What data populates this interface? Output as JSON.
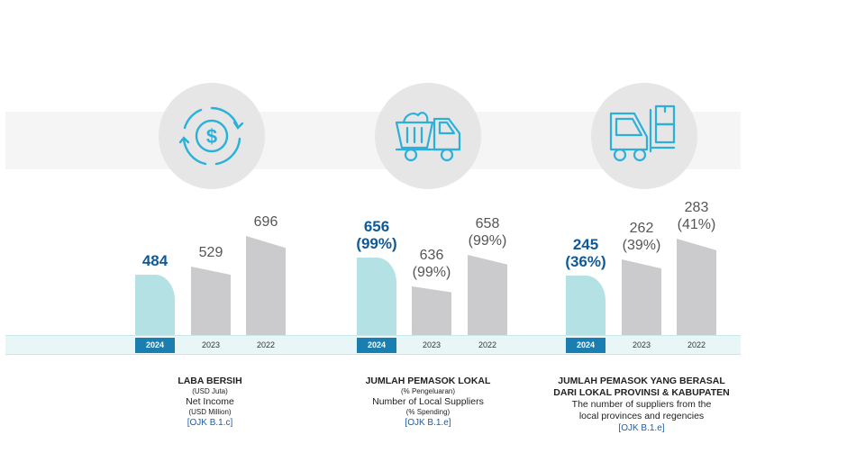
{
  "colors": {
    "current_bar": "#b3e1e4",
    "prior_bar": "#cbcbcd",
    "current_year_bg": "#1a7fb0",
    "current_value": "#0f5a96",
    "icon_stroke": "#2bb0d9"
  },
  "icons": [
    "dollar-cycle-icon",
    "truck-icon",
    "forklift-icon"
  ],
  "chart_data": [
    {
      "type": "bar",
      "categories": [
        "2024",
        "2023",
        "2022"
      ],
      "values": [
        484,
        529,
        696
      ],
      "value_labels": [
        "484",
        "529",
        "696"
      ],
      "caption": {
        "line1": "LABA BERSIH",
        "line2": "(USD Juta)",
        "line3": "Net Income",
        "line4": "(USD Million)",
        "ojk": "[OJK B.1.c]"
      }
    },
    {
      "type": "bar",
      "categories": [
        "2024",
        "2023",
        "2022"
      ],
      "values": [
        656,
        636,
        658
      ],
      "percent_labels": [
        "(99%)",
        "(99%)",
        "(99%)"
      ],
      "value_labels": [
        "656",
        "636",
        "658"
      ],
      "caption": {
        "line1": "JUMLAH PEMASOK LOKAL",
        "line2": "(% Pengeluaran)",
        "line3": "Number of Local Suppliers",
        "line4": "(% Spending)",
        "ojk": "[OJK B.1.e]"
      }
    },
    {
      "type": "bar",
      "categories": [
        "2024",
        "2023",
        "2022"
      ],
      "values": [
        245,
        262,
        283
      ],
      "percent_labels": [
        "(36%)",
        "(39%)",
        "(41%)"
      ],
      "value_labels": [
        "245",
        "262",
        "283"
      ],
      "caption": {
        "line1": "JUMLAH PEMASOK YANG BERASAL",
        "line2": "DARI LOKAL PROVINSI & KABUPATEN",
        "line3": "The number of suppliers from the",
        "line4": "local provinces and regencies",
        "ojk": "[OJK B.1.e]"
      }
    }
  ]
}
